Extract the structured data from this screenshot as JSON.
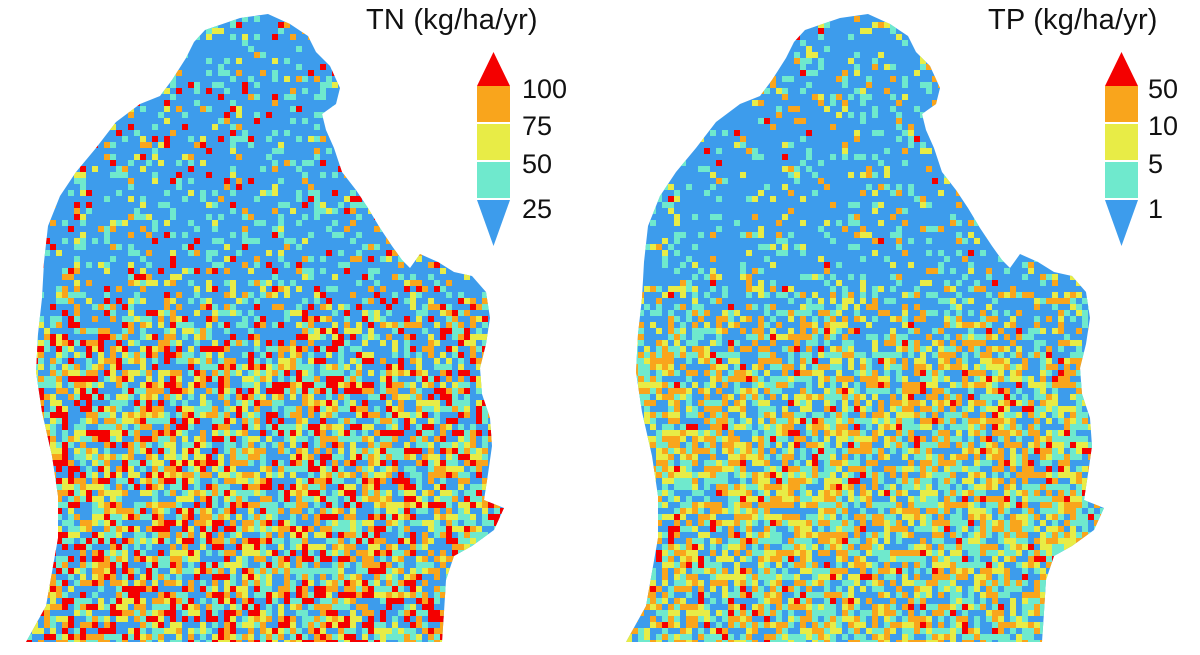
{
  "maps": [
    {
      "id": "tn",
      "legend": {
        "title": "TN (kg/ha/yr)",
        "labels": [
          "100",
          "75",
          "50",
          "25"
        ],
        "swatches": [
          {
            "color": "#f40000",
            "shape": "triangle-up"
          },
          {
            "color": "#f9a51c",
            "shape": "rect"
          },
          {
            "color": "#e8ec46",
            "shape": "rect"
          },
          {
            "color": "#6fe9cd",
            "shape": "rect"
          },
          {
            "color": "#3d9cec",
            "shape": "triangle-down"
          }
        ]
      },
      "pattern_mix": {
        "north": {
          "blue": 0.74,
          "cyan": 0.13,
          "yellow": 0.05,
          "orange": 0.04,
          "red": 0.04
        },
        "south": {
          "blue": 0.28,
          "cyan": 0.21,
          "yellow": 0.16,
          "orange": 0.18,
          "red": 0.17
        }
      }
    },
    {
      "id": "tp",
      "legend": {
        "title": "TP (kg/ha/yr)",
        "labels": [
          "50",
          "10",
          "5",
          "1"
        ],
        "swatches": [
          {
            "color": "#f40000",
            "shape": "triangle-up"
          },
          {
            "color": "#f9a51c",
            "shape": "rect"
          },
          {
            "color": "#e8ec46",
            "shape": "rect"
          },
          {
            "color": "#6fe9cd",
            "shape": "rect"
          },
          {
            "color": "#3d9cec",
            "shape": "triangle-down"
          }
        ]
      },
      "pattern_mix": {
        "north": {
          "blue": 0.78,
          "cyan": 0.12,
          "yellow": 0.05,
          "orange": 0.04,
          "red": 0.01
        },
        "south": {
          "blue": 0.27,
          "cyan": 0.25,
          "yellow": 0.18,
          "orange": 0.26,
          "red": 0.04
        }
      }
    }
  ],
  "colors": {
    "blue": "#3d9cec",
    "cyan": "#6fe9cd",
    "yellow": "#e8ec46",
    "orange": "#f9a51c",
    "red": "#f40000",
    "background": "#ffffff"
  }
}
